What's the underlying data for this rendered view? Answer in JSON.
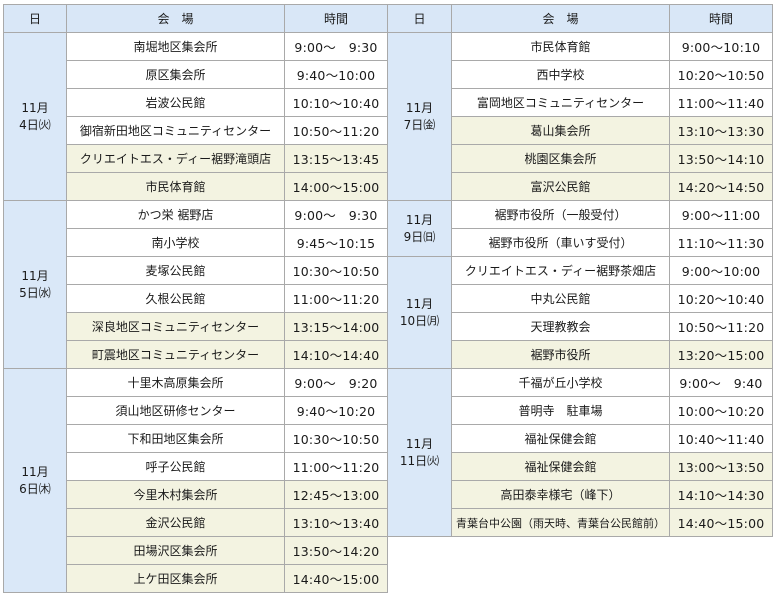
{
  "headers": {
    "day": "日",
    "venue": "会　場",
    "time": "時間"
  },
  "left": [
    {
      "month": "11月",
      "date": "4日㈫",
      "rows": [
        {
          "venue": "南堀地区集会所",
          "time": "9:00～　9:30",
          "shaded": false
        },
        {
          "venue": "原区集会所",
          "time": "9:40～10:00",
          "shaded": false
        },
        {
          "venue": "岩波公民館",
          "time": "10:10～10:40",
          "shaded": false
        },
        {
          "venue": "御宿新田地区コミュニティセンター",
          "time": "10:50～11:20",
          "shaded": false
        },
        {
          "venue": "クリエイトエス・ディー裾野滝頭店",
          "time": "13:15～13:45",
          "shaded": true
        },
        {
          "venue": "市民体育館",
          "time": "14:00～15:00",
          "shaded": true
        }
      ]
    },
    {
      "month": "11月",
      "date": "5日㈬",
      "rows": [
        {
          "venue": "かつ栄 裾野店",
          "time": "9:00～　9:30",
          "shaded": false
        },
        {
          "venue": "南小学校",
          "time": "9:45～10:15",
          "shaded": false
        },
        {
          "venue": "麦塚公民館",
          "time": "10:30～10:50",
          "shaded": false
        },
        {
          "venue": "久根公民館",
          "time": "11:00～11:20",
          "shaded": false
        },
        {
          "venue": "深良地区コミュニティセンター",
          "time": "13:15～14:00",
          "shaded": true
        },
        {
          "venue": "町震地区コミュニティセンター",
          "time": "14:10～14:40",
          "shaded": true
        }
      ]
    },
    {
      "month": "11月",
      "date": "6日㈭",
      "rows": [
        {
          "venue": "十里木高原集会所",
          "time": "9:00～　9:20",
          "shaded": false
        },
        {
          "venue": "須山地区研修センター",
          "time": "9:40～10:20",
          "shaded": false
        },
        {
          "venue": "下和田地区集会所",
          "time": "10:30～10:50",
          "shaded": false
        },
        {
          "venue": "呼子公民館",
          "time": "11:00～11:20",
          "shaded": false
        },
        {
          "venue": "今里木村集会所",
          "time": "12:45～13:00",
          "shaded": true
        },
        {
          "venue": "金沢公民館",
          "time": "13:10～13:40",
          "shaded": true
        },
        {
          "venue": "田場沢区集会所",
          "time": "13:50～14:20",
          "shaded": true
        },
        {
          "venue": "上ケ田区集会所",
          "time": "14:40～15:00",
          "shaded": true
        }
      ]
    }
  ],
  "right": [
    {
      "month": "11月",
      "date": "7日㈮",
      "rows": [
        {
          "venue": "市民体育館",
          "time": "9:00～10:10",
          "shaded": false
        },
        {
          "venue": "西中学校",
          "time": "10:20～10:50",
          "shaded": false
        },
        {
          "venue": "富岡地区コミュニティセンター",
          "time": "11:00～11:40",
          "shaded": false
        },
        {
          "venue": "葛山集会所",
          "time": "13:10～13:30",
          "shaded": true
        },
        {
          "venue": "桃園区集会所",
          "time": "13:50～14:10",
          "shaded": true
        },
        {
          "venue": "富沢公民館",
          "time": "14:20～14:50",
          "shaded": true
        }
      ]
    },
    {
      "month": "11月",
      "date": "9日㈰",
      "rows": [
        {
          "venue": "裾野市役所（一般受付）",
          "time": "9:00～11:00",
          "shaded": false
        },
        {
          "venue": "裾野市役所（車いす受付）",
          "time": "11:10～11:30",
          "shaded": false
        }
      ]
    },
    {
      "month": "11月",
      "date": "10日㈪",
      "rows": [
        {
          "venue": "クリエイトエス・ディー裾野茶畑店",
          "time": "9:00～10:00",
          "shaded": false
        },
        {
          "venue": "中丸公民館",
          "time": "10:20～10:40",
          "shaded": false
        },
        {
          "venue": "天理教教会",
          "time": "10:50～11:20",
          "shaded": false
        },
        {
          "venue": "裾野市役所",
          "time": "13:20～15:00",
          "shaded": true
        }
      ]
    },
    {
      "month": "11月",
      "date": "11日㈫",
      "rows": [
        {
          "venue": "千福が丘小学校",
          "time": "9:00～　9:40",
          "shaded": false
        },
        {
          "venue": "普明寺　駐車場",
          "time": "10:00～10:20",
          "shaded": false
        },
        {
          "venue": "福祉保健会館",
          "time": "10:40～11:40",
          "shaded": false
        },
        {
          "venue": "福祉保健会館",
          "time": "13:00～13:50",
          "shaded": true
        },
        {
          "venue": "高田泰幸様宅（峰下）",
          "time": "14:10～14:30",
          "shaded": true
        },
        {
          "venue": "青葉台中公園（雨天時、青葉台公民館前）",
          "time": "14:40～15:00",
          "shaded": true
        }
      ]
    }
  ]
}
